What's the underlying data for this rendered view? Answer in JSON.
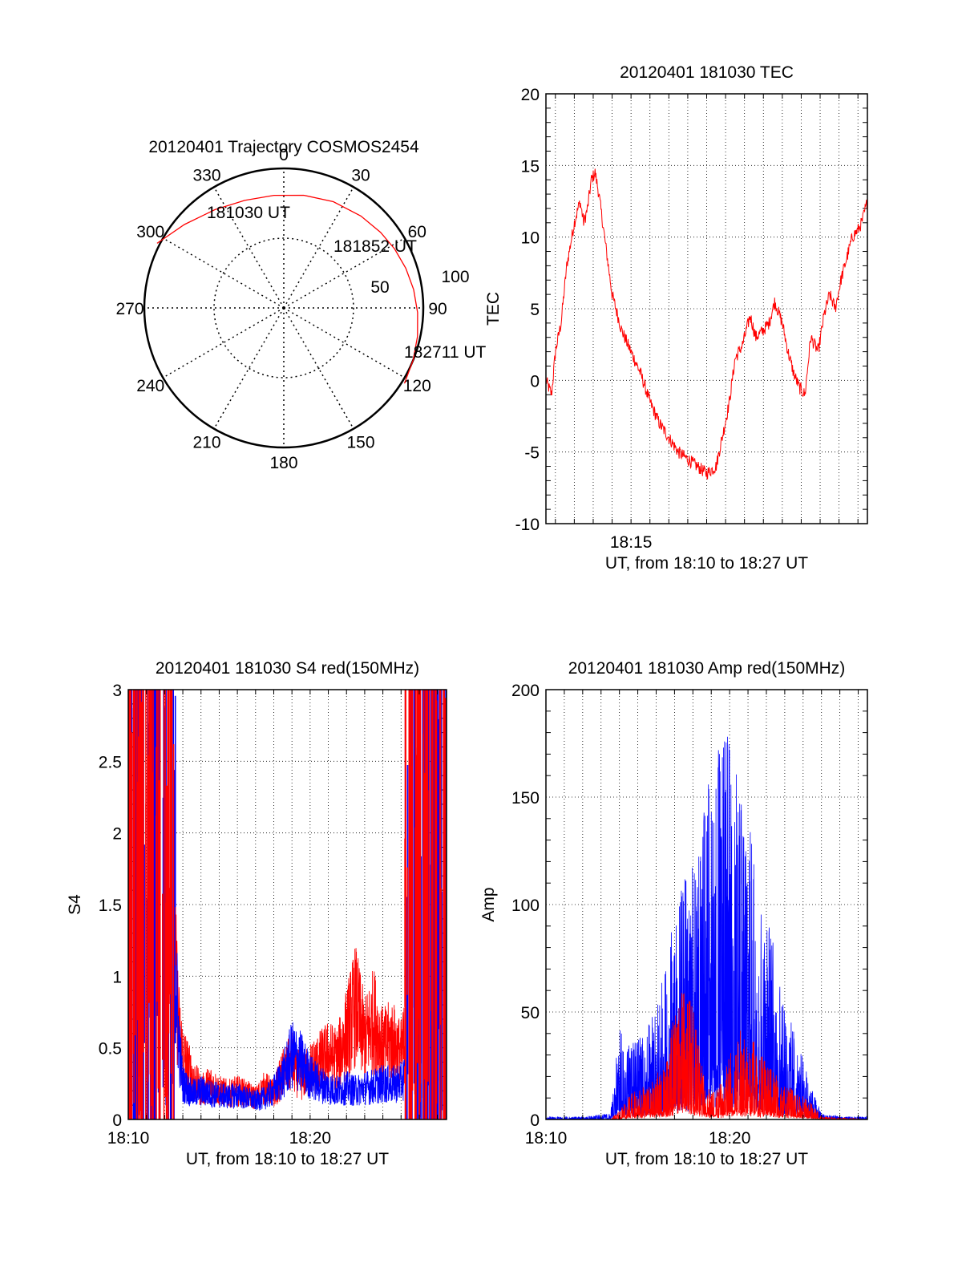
{
  "colors": {
    "red": "#ff0000",
    "blue": "#0000ff",
    "axis": "#000000",
    "grid": "#000000"
  },
  "chart_data": [
    {
      "type": "polar",
      "title": "20120401 Trajectory COSMOS2454",
      "angle_labels": [
        "0",
        "30",
        "60",
        "90",
        "120",
        "150",
        "180",
        "210",
        "240",
        "270",
        "300",
        "330"
      ],
      "radius_labels": [
        "50",
        "100"
      ],
      "trajectory": {
        "azimuth_deg": [
          297,
          310,
          325,
          340,
          355,
          10,
          25,
          40,
          52,
          62,
          72,
          82,
          92,
          102,
          112,
          122
        ],
        "zenith_ratio": [
          1.02,
          0.93,
          0.86,
          0.82,
          0.81,
          0.82,
          0.84,
          0.86,
          0.88,
          0.9,
          0.92,
          0.94,
          0.96,
          0.98,
          1.0,
          1.02
        ]
      },
      "annotations": [
        "181030 UT",
        "181852 UT",
        "182711 UT"
      ]
    },
    {
      "type": "line",
      "title": "20120401 181030 TEC",
      "xlabel": "UT, from 18:10 to 18:27 UT",
      "ylabel": "TEC",
      "ylim": [
        -10,
        20
      ],
      "xlim_min": [
        10.5,
        27.5
      ],
      "yticks": [
        "-10",
        "-5",
        "0",
        "5",
        "10",
        "15",
        "20"
      ],
      "xtick_labels": [
        {
          "x": 15,
          "label": "18:15"
        }
      ],
      "series": [
        {
          "color": "#ff0000",
          "x": [
            10.5,
            10.8,
            11.0,
            11.3,
            11.6,
            12.0,
            12.3,
            12.5,
            12.7,
            12.9,
            13.1,
            13.3,
            13.6,
            14.0,
            14.5,
            15.0,
            15.5,
            16.0,
            16.5,
            17.0,
            17.5,
            18.0,
            18.5,
            19.0,
            19.5,
            19.9,
            20.2,
            20.5,
            20.9,
            21.3,
            21.6,
            22.0,
            22.3,
            22.6,
            23.0,
            23.3,
            23.6,
            23.9,
            24.2,
            24.5,
            24.9,
            25.2,
            25.5,
            25.8,
            26.1,
            26.4,
            26.7,
            27.0,
            27.2,
            27.5
          ],
          "y": [
            0.0,
            -1.0,
            2.0,
            4.0,
            8.0,
            11.0,
            12.5,
            11.0,
            12.0,
            14.0,
            14.5,
            13.0,
            10.0,
            6.0,
            3.5,
            2.0,
            0.5,
            -1.5,
            -3.0,
            -4.0,
            -5.0,
            -5.5,
            -6.0,
            -6.5,
            -6.0,
            -3.5,
            -1.5,
            1.5,
            2.5,
            4.5,
            3.0,
            3.5,
            4.0,
            5.5,
            4.0,
            2.0,
            0.5,
            -0.5,
            -1.0,
            3.0,
            2.0,
            4.5,
            6.0,
            5.0,
            7.0,
            8.5,
            10.0,
            10.5,
            11.0,
            12.5
          ]
        }
      ]
    },
    {
      "type": "line",
      "title": "20120401 181030 S4 red(150MHz)",
      "xlabel": "UT, from 18:10 to 18:27 UT",
      "ylabel": "S4",
      "ylim": [
        0,
        3
      ],
      "xlim_min": [
        10,
        27.5
      ],
      "yticks": [
        "0",
        "0.5",
        "1",
        "1.5",
        "2",
        "2.5",
        "3"
      ],
      "xtick_labels": [
        {
          "x": 10,
          "label": "18:10"
        },
        {
          "x": 20,
          "label": "18:20"
        }
      ],
      "series": [
        {
          "color": "#ff0000",
          "x": [
            12.6,
            12.8,
            13.0,
            13.5,
            14.0,
            14.5,
            15.0,
            15.5,
            16.0,
            16.5,
            17.0,
            17.5,
            18.0,
            18.5,
            19.0,
            19.5,
            20.0,
            20.5,
            21.0,
            21.5,
            22.0,
            22.5,
            23.0,
            23.5,
            24.0,
            24.5,
            25.0,
            25.2
          ],
          "y": [
            1.0,
            0.6,
            0.45,
            0.3,
            0.2,
            0.25,
            0.2,
            0.18,
            0.2,
            0.18,
            0.15,
            0.22,
            0.18,
            0.32,
            0.4,
            0.28,
            0.35,
            0.4,
            0.45,
            0.42,
            0.6,
            0.8,
            0.55,
            0.7,
            0.5,
            0.55,
            0.45,
            0.55
          ]
        },
        {
          "color": "#0000ff",
          "x": [
            12.6,
            12.8,
            13.0,
            13.5,
            14.0,
            14.5,
            15.0,
            15.5,
            16.0,
            16.5,
            17.0,
            17.5,
            18.0,
            18.5,
            19.0,
            19.5,
            20.0,
            20.5,
            21.0,
            21.5,
            22.0,
            22.5,
            23.0,
            23.5,
            24.0,
            24.5,
            25.0,
            25.2
          ],
          "y": [
            1.0,
            0.5,
            0.25,
            0.18,
            0.2,
            0.18,
            0.17,
            0.16,
            0.17,
            0.15,
            0.13,
            0.15,
            0.2,
            0.3,
            0.45,
            0.4,
            0.3,
            0.25,
            0.22,
            0.2,
            0.22,
            0.2,
            0.22,
            0.23,
            0.25,
            0.24,
            0.26,
            0.3
          ]
        }
      ],
      "noise_regions": [
        {
          "x_from": 10.0,
          "x_to": 12.6
        },
        {
          "x_from": 25.2,
          "x_to": 27.5
        }
      ]
    },
    {
      "type": "line",
      "title": "20120401 181030 Amp red(150MHz)",
      "xlabel": "UT, from 18:10 to 18:27 UT",
      "ylabel": "Amp",
      "ylim": [
        0,
        200
      ],
      "xlim_min": [
        10,
        27.5
      ],
      "yticks": [
        "0",
        "50",
        "100",
        "150",
        "200"
      ],
      "xtick_labels": [
        {
          "x": 10,
          "label": "18:10"
        },
        {
          "x": 20,
          "label": "18:20"
        }
      ],
      "series": [
        {
          "color": "#0000ff",
          "x": [
            10,
            12,
            13.5,
            14,
            14.5,
            15,
            15.5,
            16,
            16.5,
            17,
            17.5,
            18,
            18.5,
            19,
            19.5,
            20,
            20.5,
            21,
            21.5,
            22,
            22.5,
            23,
            23.5,
            24,
            24.5,
            25,
            26,
            27.5
          ],
          "y": [
            1,
            1,
            2,
            30,
            25,
            28,
            30,
            38,
            50,
            70,
            80,
            85,
            100,
            120,
            125,
            130,
            110,
            100,
            85,
            70,
            55,
            40,
            30,
            20,
            10,
            2,
            1,
            1
          ]
        },
        {
          "color": "#ff0000",
          "x": [
            10,
            13.5,
            14,
            14.5,
            15,
            15.5,
            16,
            16.5,
            17,
            17.5,
            18,
            18.5,
            19,
            19.5,
            20,
            20.5,
            21,
            21.5,
            22,
            22.5,
            23,
            23.5,
            24,
            24.5,
            25,
            27.5
          ],
          "y": [
            0,
            0,
            3,
            8,
            10,
            12,
            15,
            20,
            35,
            45,
            40,
            20,
            10,
            12,
            22,
            30,
            28,
            25,
            20,
            15,
            12,
            10,
            8,
            5,
            1,
            0
          ]
        }
      ]
    }
  ]
}
